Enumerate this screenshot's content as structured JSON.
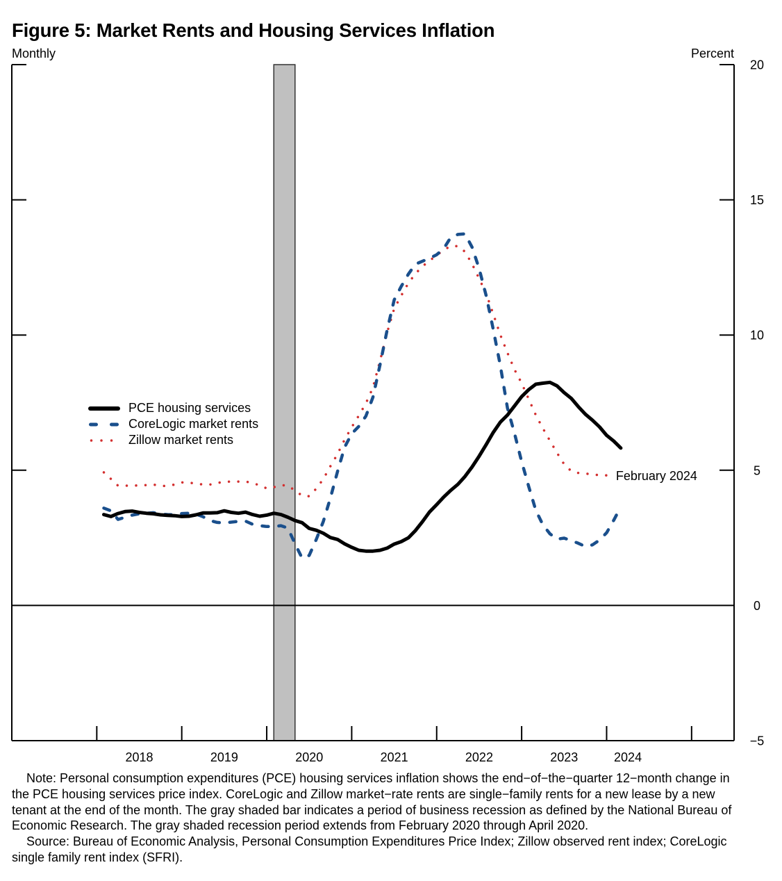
{
  "figure": {
    "title": "Figure 5: Market Rents and Housing Services Inflation",
    "left_axis_label": "Monthly",
    "right_axis_label": "Percent"
  },
  "legend": {
    "items": [
      {
        "label": "PCE housing services",
        "series": "pce"
      },
      {
        "label": "CoreLogic market rents",
        "series": "corelogic"
      },
      {
        "label": "Zillow market rents",
        "series": "zillow"
      }
    ]
  },
  "notes": {
    "note": "Note: Personal consumption expenditures (PCE) housing services inflation shows the end−of−the−quarter 12−month change in the PCE housing services price index. CoreLogic and Zillow market−rate rents are single−family rents for a new lease by a new tenant at the end of the month. The gray shaded bar indicates a period of business recession as defined by the National Bureau of Economic Research. The gray shaded recession period extends from February 2020 through April 2020.",
    "source": "Source: Bureau of Economic Analysis, Personal Consumption Expenditures Price Index; Zillow observed rent index; CoreLogic single family rent index (SFRI)."
  },
  "chart_data": {
    "type": "line",
    "title": "Figure 5: Market Rents and Housing Services Inflation",
    "frequency": "Monthly",
    "xlabel": "",
    "ylabel": "Percent",
    "y_axis_side": "right",
    "xlim": [
      "2017-01",
      "2025-07"
    ],
    "ylim": [
      -5,
      20
    ],
    "y_ticks": [
      20,
      15,
      10,
      5,
      0,
      -5
    ],
    "y_tick_labels": [
      "20",
      "15",
      "10",
      "5",
      "0",
      "−5"
    ],
    "x_ticks": [
      "2018-01",
      "2019-01",
      "2020-01",
      "2021-01",
      "2022-01",
      "2023-01",
      "2024-01",
      "2025-01"
    ],
    "x_tick_labels": [
      {
        "label": "2018",
        "at": "2018-07"
      },
      {
        "label": "2019",
        "at": "2019-07"
      },
      {
        "label": "2020",
        "at": "2020-07"
      },
      {
        "label": "2021",
        "at": "2021-07"
      },
      {
        "label": "2022",
        "at": "2022-07"
      },
      {
        "label": "2023",
        "at": "2023-07"
      },
      {
        "label": "2024",
        "at": "2024-04"
      }
    ],
    "grid": false,
    "zero_line": true,
    "legend_position": "center-left",
    "shaded_regions": [
      {
        "label": "Recession",
        "start": "2020-02",
        "end": "2020-04",
        "color": "#c0c0c0"
      }
    ],
    "annotations": [
      {
        "text": "February 2024",
        "x": "2024-02",
        "y": 4.8
      }
    ],
    "x": [
      "2018-01",
      "2018-02",
      "2018-03",
      "2018-04",
      "2018-05",
      "2018-06",
      "2018-07",
      "2018-08",
      "2018-09",
      "2018-10",
      "2018-11",
      "2018-12",
      "2019-01",
      "2019-02",
      "2019-03",
      "2019-04",
      "2019-05",
      "2019-06",
      "2019-07",
      "2019-08",
      "2019-09",
      "2019-10",
      "2019-11",
      "2019-12",
      "2020-01",
      "2020-02",
      "2020-03",
      "2020-04",
      "2020-05",
      "2020-06",
      "2020-07",
      "2020-08",
      "2020-09",
      "2020-10",
      "2020-11",
      "2020-12",
      "2021-01",
      "2021-02",
      "2021-03",
      "2021-04",
      "2021-05",
      "2021-06",
      "2021-07",
      "2021-08",
      "2021-09",
      "2021-10",
      "2021-11",
      "2021-12",
      "2022-01",
      "2022-02",
      "2022-03",
      "2022-04",
      "2022-05",
      "2022-06",
      "2022-07",
      "2022-08",
      "2022-09",
      "2022-10",
      "2022-11",
      "2022-12",
      "2023-01",
      "2023-02",
      "2023-03",
      "2023-04",
      "2023-05",
      "2023-06",
      "2023-07",
      "2023-08",
      "2023-09",
      "2023-10",
      "2023-11",
      "2023-12",
      "2024-01",
      "2024-02"
    ],
    "series": [
      {
        "id": "pce",
        "name": "PCE housing services",
        "color": "#000000",
        "style": "solid",
        "values": [
          3.36,
          3.29,
          3.4,
          3.47,
          3.49,
          3.44,
          3.41,
          3.39,
          3.35,
          3.33,
          3.32,
          3.29,
          3.3,
          3.35,
          3.42,
          3.42,
          3.43,
          3.5,
          3.44,
          3.41,
          3.45,
          3.36,
          3.3,
          3.34,
          3.41,
          3.36,
          3.26,
          3.14,
          3.06,
          2.85,
          2.78,
          2.67,
          2.51,
          2.44,
          2.28,
          2.15,
          2.04,
          2.01,
          2.01,
          2.04,
          2.12,
          2.27,
          2.36,
          2.5,
          2.77,
          3.1,
          3.46,
          3.73,
          4.01,
          4.26,
          4.48,
          4.77,
          5.12,
          5.52,
          5.95,
          6.4,
          6.78,
          7.04,
          7.38,
          7.72,
          7.98,
          8.18,
          8.22,
          8.25,
          8.12,
          7.87,
          7.66,
          7.35,
          7.07,
          6.85,
          6.6,
          6.29,
          6.08,
          5.82
        ]
      },
      {
        "id": "corelogic",
        "name": "CoreLogic market rents",
        "color": "#1a4f8c",
        "style": "dashed",
        "values": [
          3.6,
          3.5,
          3.18,
          3.26,
          3.34,
          3.39,
          3.41,
          3.43,
          3.38,
          3.36,
          3.35,
          3.4,
          3.41,
          3.38,
          3.28,
          3.14,
          3.07,
          3.05,
          3.08,
          3.11,
          3.12,
          3.0,
          2.95,
          2.92,
          2.92,
          2.95,
          2.86,
          2.28,
          1.75,
          1.85,
          2.44,
          3.11,
          3.98,
          4.95,
          5.85,
          6.35,
          6.62,
          7.0,
          7.7,
          8.9,
          10.18,
          11.3,
          11.8,
          12.25,
          12.62,
          12.73,
          12.84,
          12.97,
          13.2,
          13.62,
          13.72,
          13.74,
          13.25,
          12.46,
          11.45,
          10.2,
          8.86,
          7.3,
          6.36,
          5.32,
          4.4,
          3.52,
          2.98,
          2.65,
          2.45,
          2.49,
          2.4,
          2.3,
          2.18,
          2.24,
          2.42,
          2.69,
          3.15,
          3.65
        ]
      },
      {
        "id": "zillow",
        "name": "Zillow market rents",
        "color": "#d32f2f",
        "style": "dotted",
        "values": [
          4.92,
          4.68,
          4.43,
          4.43,
          4.43,
          4.44,
          4.45,
          4.47,
          4.42,
          4.42,
          4.47,
          4.55,
          4.54,
          4.51,
          4.47,
          4.47,
          4.53,
          4.57,
          4.58,
          4.58,
          4.58,
          4.53,
          4.44,
          4.33,
          4.37,
          4.45,
          4.43,
          4.25,
          4.06,
          4.04,
          4.32,
          4.68,
          5.15,
          5.6,
          6.13,
          6.59,
          7.02,
          7.47,
          8.06,
          9.05,
          10.09,
          10.98,
          11.46,
          11.92,
          12.27,
          12.54,
          12.75,
          12.95,
          13.15,
          13.29,
          13.29,
          13.08,
          12.63,
          12.09,
          11.53,
          10.77,
          10.0,
          9.34,
          8.72,
          8.22,
          7.63,
          7.04,
          6.55,
          6.09,
          5.64,
          5.22,
          4.97,
          4.9,
          4.88,
          4.84,
          4.82,
          4.81,
          4.81,
          null
        ]
      }
    ]
  }
}
